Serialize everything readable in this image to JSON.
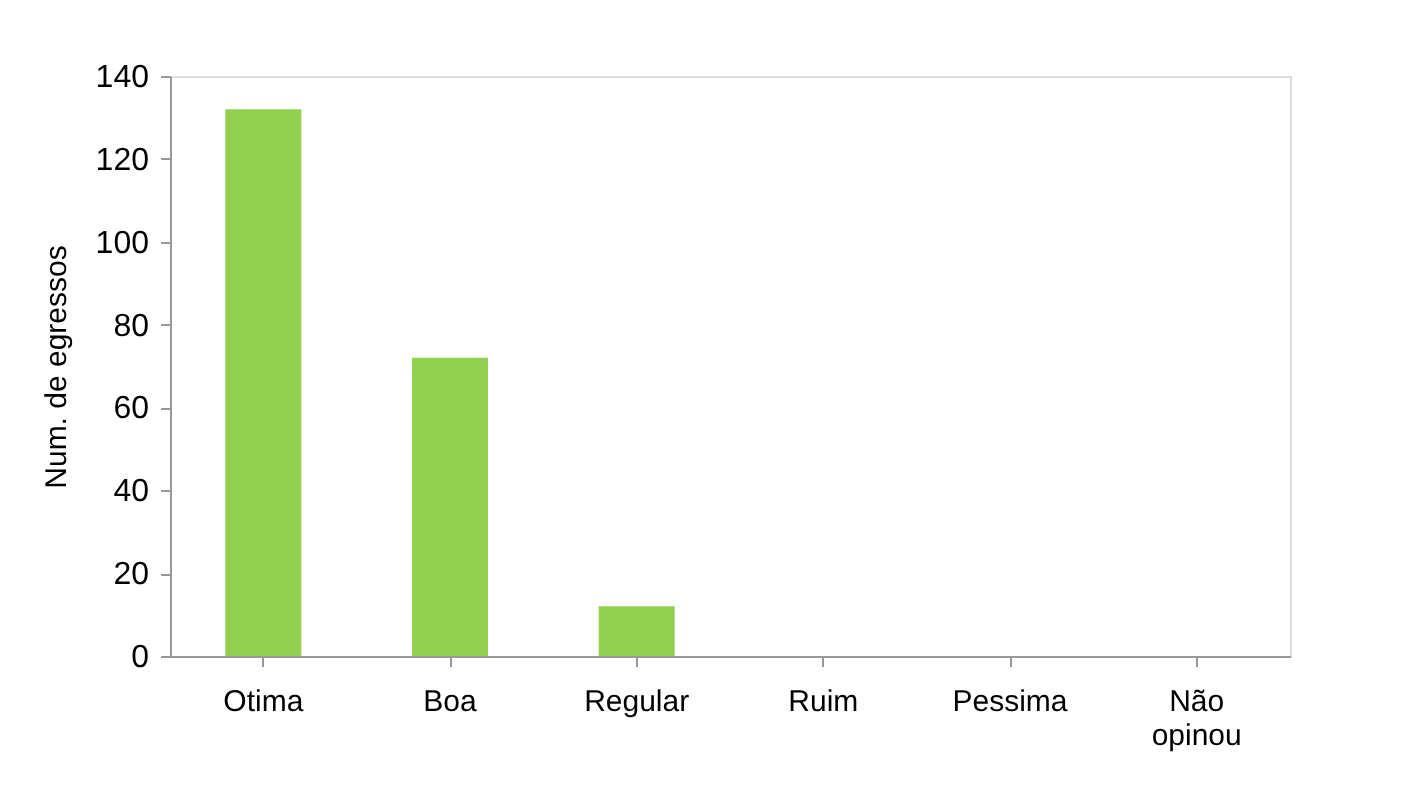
{
  "chart_data": {
    "type": "bar",
    "ylabel": "Num. de egressos",
    "categories": [
      "Otima",
      "Boa",
      "Regular",
      "Ruim",
      "Pessima",
      "Não opinou"
    ],
    "values": [
      132,
      72,
      12,
      0,
      0,
      0
    ],
    "color": "#92d050",
    "ylim": [
      0,
      140
    ],
    "yticks": [
      0,
      20,
      40,
      60,
      80,
      100,
      120,
      140
    ],
    "grid": false
  }
}
